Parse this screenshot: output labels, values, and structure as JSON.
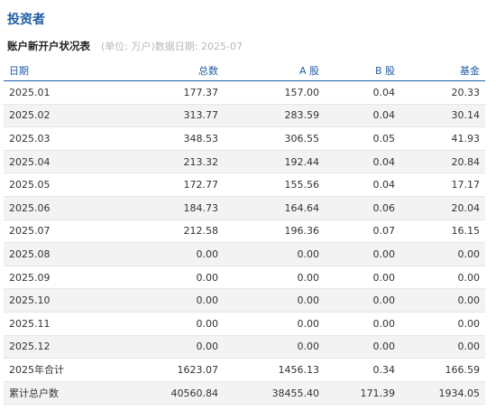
{
  "page": {
    "title": "投资者",
    "subtitle": "账户新开户状况表",
    "note": "(单位: 万户)数据日期: 2025-07"
  },
  "table": {
    "columns": [
      "日期",
      "总数",
      "A 股",
      "B 股",
      "基金"
    ],
    "rows": [
      [
        "2025.01",
        "177.37",
        "157.00",
        "0.04",
        "20.33"
      ],
      [
        "2025.02",
        "313.77",
        "283.59",
        "0.04",
        "30.14"
      ],
      [
        "2025.03",
        "348.53",
        "306.55",
        "0.05",
        "41.93"
      ],
      [
        "2025.04",
        "213.32",
        "192.44",
        "0.04",
        "20.84"
      ],
      [
        "2025.05",
        "172.77",
        "155.56",
        "0.04",
        "17.17"
      ],
      [
        "2025.06",
        "184.73",
        "164.64",
        "0.06",
        "20.04"
      ],
      [
        "2025.07",
        "212.58",
        "196.36",
        "0.07",
        "16.15"
      ],
      [
        "2025.08",
        "0.00",
        "0.00",
        "0.00",
        "0.00"
      ],
      [
        "2025.09",
        "0.00",
        "0.00",
        "0.00",
        "0.00"
      ],
      [
        "2025.10",
        "0.00",
        "0.00",
        "0.00",
        "0.00"
      ],
      [
        "2025.11",
        "0.00",
        "0.00",
        "0.00",
        "0.00"
      ],
      [
        "2025.12",
        "0.00",
        "0.00",
        "0.00",
        "0.00"
      ],
      [
        "2025年合计",
        "1623.07",
        "1456.13",
        "0.34",
        "166.59"
      ],
      [
        "累计总户数",
        "40560.84",
        "38455.40",
        "171.39",
        "1934.05"
      ]
    ]
  },
  "colors": {
    "accent": "#1f5ea8",
    "row_alt": "#f3f3f3",
    "note_gray": "#b8b8b8"
  }
}
